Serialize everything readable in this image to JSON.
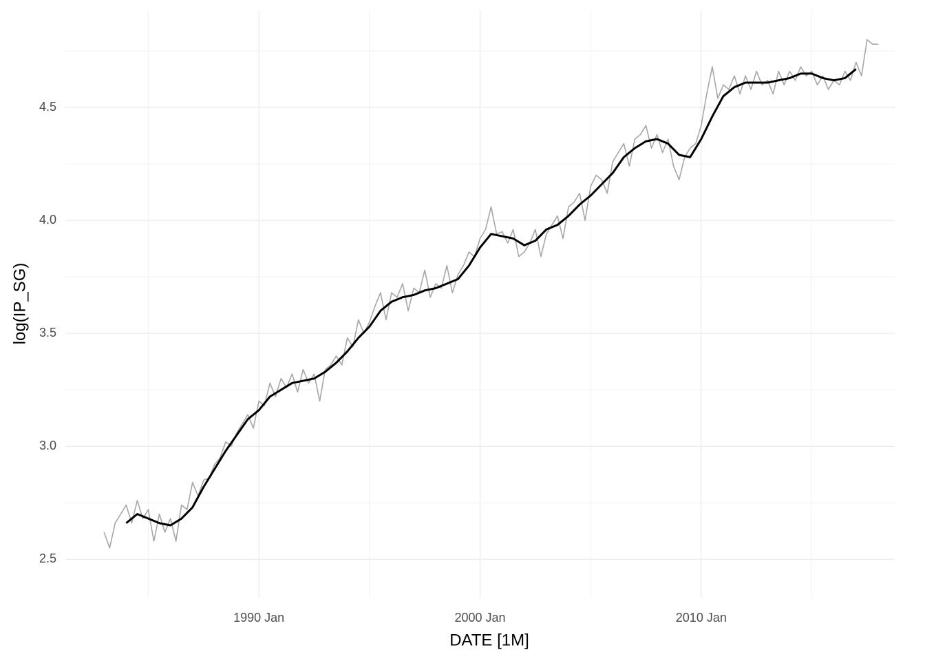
{
  "chart_data": {
    "type": "line",
    "x_label": "DATE [1M]",
    "y_label": "log(IP_SG)",
    "xlim": [
      "1981 Apr",
      "2018 Oct"
    ],
    "xticks": [
      "1990 Jan",
      "2000 Jan",
      "2010 Jan"
    ],
    "ylim": [
      2.33,
      4.93
    ],
    "yticks": [
      2.5,
      {
        "value": 3,
        "label": "3.0"
      },
      3.5,
      {
        "value": 4,
        "label": "4.0"
      },
      4.5
    ],
    "grid": true,
    "series": [
      {
        "color": "#a6a6a6",
        "x": [
          "1983 Jan",
          "1983 Apr",
          "1983 Jul",
          "1983 Oct",
          "1984 Jan",
          "1984 Apr",
          "1984 Jul",
          "1984 Oct",
          "1985 Jan",
          "1985 Apr",
          "1985 Jul",
          "1985 Oct",
          "1986 Jan",
          "1986 Apr",
          "1986 Jul",
          "1986 Oct",
          "1987 Jan",
          "1987 Apr",
          "1987 Jul",
          "1987 Oct",
          "1988 Jan",
          "1988 Apr",
          "1988 Jul",
          "1988 Oct",
          "1989 Jan",
          "1989 Apr",
          "1989 Jul",
          "1989 Oct",
          "1990 Jan",
          "1990 Apr",
          "1990 Jul",
          "1990 Oct",
          "1991 Jan",
          "1991 Apr",
          "1991 Jul",
          "1991 Oct",
          "1992 Jan",
          "1992 Apr",
          "1992 Jul",
          "1992 Oct",
          "1993 Jan",
          "1993 Apr",
          "1993 Jul",
          "1993 Oct",
          "1994 Jan",
          "1994 Apr",
          "1994 Jul",
          "1994 Oct",
          "1995 Jan",
          "1995 Apr",
          "1995 Jul",
          "1995 Oct",
          "1996 Jan",
          "1996 Apr",
          "1996 Jul",
          "1996 Oct",
          "1997 Jan",
          "1997 Apr",
          "1997 Jul",
          "1997 Oct",
          "1998 Jan",
          "1998 Apr",
          "1998 Jul",
          "1998 Oct",
          "1999 Jan",
          "1999 Apr",
          "1999 Jul",
          "1999 Oct",
          "2000 Jan",
          "2000 Apr",
          "2000 Jul",
          "2000 Oct",
          "2001 Jan",
          "2001 Apr",
          "2001 Jul",
          "2001 Oct",
          "2002 Jan",
          "2002 Apr",
          "2002 Jul",
          "2002 Oct",
          "2003 Jan",
          "2003 Apr",
          "2003 Jul",
          "2003 Oct",
          "2004 Jan",
          "2004 Apr",
          "2004 Jul",
          "2004 Oct",
          "2005 Jan",
          "2005 Apr",
          "2005 Jul",
          "2005 Oct",
          "2006 Jan",
          "2006 Apr",
          "2006 Jul",
          "2006 Oct",
          "2007 Jan",
          "2007 Apr",
          "2007 Jul",
          "2007 Oct",
          "2008 Jan",
          "2008 Apr",
          "2008 Jul",
          "2008 Oct",
          "2009 Jan",
          "2009 Apr",
          "2009 Jul",
          "2009 Oct",
          "2010 Jan",
          "2010 Apr",
          "2010 Jul",
          "2010 Oct",
          "2011 Jan",
          "2011 Apr",
          "2011 Jul",
          "2011 Oct",
          "2012 Jan",
          "2012 Apr",
          "2012 Jul",
          "2012 Oct",
          "2013 Jan",
          "2013 Apr",
          "2013 Jul",
          "2013 Oct",
          "2014 Jan",
          "2014 Apr",
          "2014 Jul",
          "2014 Oct",
          "2015 Jan",
          "2015 Apr",
          "2015 Jul",
          "2015 Oct",
          "2016 Jan",
          "2016 Apr",
          "2016 Jul",
          "2016 Oct",
          "2017 Jan",
          "2017 Apr",
          "2017 Jul",
          "2017 Oct",
          "2018 Jan"
        ],
        "values": [
          2.62,
          2.55,
          2.66,
          2.7,
          2.74,
          2.66,
          2.76,
          2.68,
          2.72,
          2.58,
          2.7,
          2.62,
          2.68,
          2.58,
          2.74,
          2.72,
          2.84,
          2.78,
          2.85,
          2.86,
          2.92,
          2.95,
          3.02,
          3.0,
          3.06,
          3.1,
          3.14,
          3.08,
          3.2,
          3.18,
          3.28,
          3.22,
          3.3,
          3.26,
          3.32,
          3.24,
          3.34,
          3.28,
          3.32,
          3.2,
          3.34,
          3.36,
          3.4,
          3.36,
          3.48,
          3.44,
          3.56,
          3.5,
          3.55,
          3.62,
          3.68,
          3.56,
          3.68,
          3.66,
          3.72,
          3.6,
          3.7,
          3.68,
          3.78,
          3.66,
          3.72,
          3.7,
          3.8,
          3.68,
          3.76,
          3.8,
          3.86,
          3.84,
          3.92,
          3.96,
          4.06,
          3.94,
          3.95,
          3.9,
          3.96,
          3.84,
          3.86,
          3.9,
          3.96,
          3.84,
          3.94,
          3.98,
          4.02,
          3.92,
          4.06,
          4.08,
          4.12,
          4.0,
          4.15,
          4.2,
          4.18,
          4.12,
          4.26,
          4.3,
          4.34,
          4.24,
          4.36,
          4.38,
          4.42,
          4.32,
          4.38,
          4.3,
          4.36,
          4.24,
          4.18,
          4.28,
          4.32,
          4.34,
          4.42,
          4.56,
          4.68,
          4.54,
          4.6,
          4.58,
          4.64,
          4.56,
          4.64,
          4.58,
          4.66,
          4.6,
          4.62,
          4.56,
          4.66,
          4.6,
          4.66,
          4.62,
          4.68,
          4.64,
          4.66,
          4.6,
          4.64,
          4.58,
          4.62,
          4.6,
          4.66,
          4.62,
          4.7,
          4.64,
          4.8,
          4.78,
          4.78
        ]
      },
      {
        "color": "#000000",
        "x": [
          "1984 Jan",
          "1984 Jul",
          "1985 Jan",
          "1985 Jul",
          "1986 Jan",
          "1986 Jul",
          "1987 Jan",
          "1987 Jul",
          "1988 Jan",
          "1988 Jul",
          "1989 Jan",
          "1989 Jul",
          "1990 Jan",
          "1990 Jul",
          "1991 Jan",
          "1991 Jul",
          "1992 Jan",
          "1992 Jul",
          "1993 Jan",
          "1993 Jul",
          "1994 Jan",
          "1994 Jul",
          "1995 Jan",
          "1995 Jul",
          "1996 Jan",
          "1996 Jul",
          "1997 Jan",
          "1997 Jul",
          "1998 Jan",
          "1998 Jul",
          "1999 Jan",
          "1999 Jul",
          "2000 Jan",
          "2000 Jul",
          "2001 Jan",
          "2001 Jul",
          "2002 Jan",
          "2002 Jul",
          "2003 Jan",
          "2003 Jul",
          "2004 Jan",
          "2004 Jul",
          "2005 Jan",
          "2005 Jul",
          "2006 Jan",
          "2006 Jul",
          "2007 Jan",
          "2007 Jul",
          "2008 Jan",
          "2008 Jul",
          "2009 Jan",
          "2009 Jul",
          "2010 Jan",
          "2010 Jul",
          "2011 Jan",
          "2011 Jul",
          "2012 Jan",
          "2012 Jul",
          "2013 Jan",
          "2013 Jul",
          "2014 Jan",
          "2014 Jul",
          "2015 Jan",
          "2015 Jul",
          "2016 Jan",
          "2016 Jul",
          "2017 Jan"
        ],
        "values": [
          2.66,
          2.7,
          2.68,
          2.66,
          2.65,
          2.68,
          2.73,
          2.82,
          2.9,
          2.98,
          3.05,
          3.12,
          3.16,
          3.22,
          3.25,
          3.28,
          3.29,
          3.3,
          3.33,
          3.37,
          3.42,
          3.48,
          3.53,
          3.6,
          3.64,
          3.66,
          3.67,
          3.69,
          3.7,
          3.72,
          3.74,
          3.8,
          3.88,
          3.94,
          3.93,
          3.92,
          3.89,
          3.91,
          3.96,
          3.98,
          4.02,
          4.07,
          4.11,
          4.16,
          4.21,
          4.28,
          4.32,
          4.35,
          4.36,
          4.34,
          4.29,
          4.28,
          4.36,
          4.46,
          4.55,
          4.59,
          4.61,
          4.61,
          4.61,
          4.62,
          4.63,
          4.65,
          4.65,
          4.63,
          4.62,
          4.63,
          4.67
        ]
      }
    ]
  }
}
